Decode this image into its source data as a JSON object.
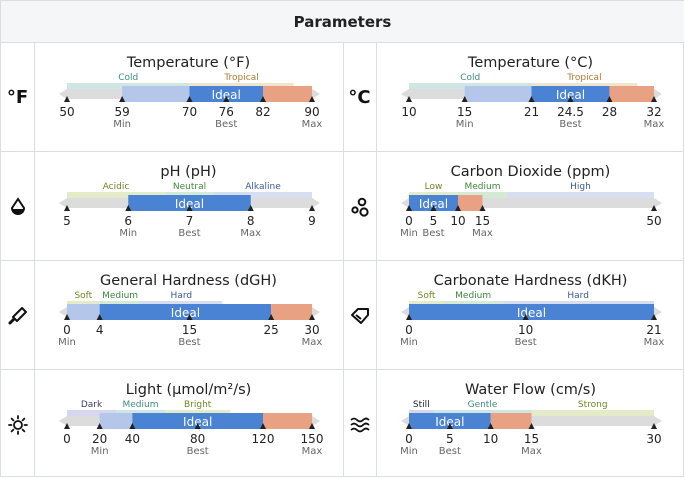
{
  "header": {
    "title": "Parameters"
  },
  "params": [
    {
      "icon": "°F",
      "icon_name": "fahrenheit-icon",
      "title": "Temperature (°F)",
      "domain": [
        50,
        90
      ],
      "zones": [
        {
          "label": "Cold",
          "from": 50,
          "to": 70,
          "color": "#cfe7e4",
          "text": "#3f8b80"
        },
        {
          "label": "Tropical",
          "from": 70,
          "to": 87,
          "color": "#f1e4cc",
          "text": "#b07a30"
        }
      ],
      "ranges": {
        "lowMin": 59,
        "idealMin": 70,
        "idealMax": 82,
        "max": 90
      },
      "ideal_label": "Ideal",
      "ticks": [
        {
          "v": 50,
          "label": "50",
          "sub": ""
        },
        {
          "v": 59,
          "label": "59",
          "sub": "Min"
        },
        {
          "v": 70,
          "label": "70",
          "sub": ""
        },
        {
          "v": 76,
          "label": "76",
          "sub": "Best"
        },
        {
          "v": 82,
          "label": "82",
          "sub": ""
        },
        {
          "v": 90,
          "label": "90",
          "sub": "Max"
        }
      ]
    },
    {
      "icon": "°C",
      "icon_name": "celsius-icon",
      "title": "Temperature (°C)",
      "domain": [
        10,
        32
      ],
      "zones": [
        {
          "label": "Cold",
          "from": 10,
          "to": 21,
          "color": "#cfe7e4",
          "text": "#3f8b80"
        },
        {
          "label": "Tropical",
          "from": 21,
          "to": 30.5,
          "color": "#f1e4cc",
          "text": "#b07a30"
        }
      ],
      "ranges": {
        "lowMin": 15,
        "idealMin": 21,
        "idealMax": 28,
        "max": 32
      },
      "ideal_label": "Ideal",
      "ticks": [
        {
          "v": 10,
          "label": "10",
          "sub": ""
        },
        {
          "v": 15,
          "label": "15",
          "sub": "Min"
        },
        {
          "v": 21,
          "label": "21",
          "sub": ""
        },
        {
          "v": 24.5,
          "label": "24.5",
          "sub": "Best"
        },
        {
          "v": 28,
          "label": "28",
          "sub": ""
        },
        {
          "v": 32,
          "label": "32",
          "sub": "Max"
        }
      ]
    },
    {
      "icon": "drop",
      "icon_name": "water-drop-icon",
      "title": "pH (pH)",
      "domain": [
        5,
        9
      ],
      "zones": [
        {
          "label": "Acidic",
          "from": 5,
          "to": 6.6,
          "color": "#e3ebc9",
          "text": "#6b8a1f"
        },
        {
          "label": "Neutral",
          "from": 6.6,
          "to": 7.4,
          "color": "#d4ead4",
          "text": "#3d8a3d"
        },
        {
          "label": "Alkaline",
          "from": 7.4,
          "to": 9,
          "color": "#d6def0",
          "text": "#3b5a99"
        }
      ],
      "ranges": {
        "lowMin": 6,
        "idealMin": 6,
        "idealMax": 8,
        "max": 8
      },
      "ideal_label": "Ideal",
      "ticks": [
        {
          "v": 5,
          "label": "5",
          "sub": ""
        },
        {
          "v": 6,
          "label": "6",
          "sub": "Min"
        },
        {
          "v": 7,
          "label": "7",
          "sub": "Best"
        },
        {
          "v": 8,
          "label": "8",
          "sub": "Max"
        },
        {
          "v": 9,
          "label": "9",
          "sub": ""
        }
      ]
    },
    {
      "icon": "bubbles",
      "icon_name": "bubbles-icon",
      "title": "Carbon Dioxide (ppm)",
      "domain": [
        0,
        50
      ],
      "zones": [
        {
          "label": "Low",
          "from": 0,
          "to": 10,
          "color": "#e3ebc9",
          "text": "#6b8a1f"
        },
        {
          "label": "Medium",
          "from": 10,
          "to": 20,
          "color": "#d4ead4",
          "text": "#3d8a3d"
        },
        {
          "label": "High",
          "from": 20,
          "to": 50,
          "color": "#d6def0",
          "text": "#3b5a99"
        }
      ],
      "ranges": {
        "lowMin": 0,
        "idealMin": 0,
        "idealMax": 10,
        "max": 15
      },
      "ideal_label": "Ideal",
      "ticks": [
        {
          "v": 0,
          "label": "0",
          "sub": "Min"
        },
        {
          "v": 5,
          "label": "5",
          "sub": "Best"
        },
        {
          "v": 10,
          "label": "10",
          "sub": ""
        },
        {
          "v": 15,
          "label": "15",
          "sub": "Max"
        },
        {
          "v": 50,
          "label": "50",
          "sub": ""
        }
      ]
    },
    {
      "icon": "pestle",
      "icon_name": "pestle-icon",
      "title": "General Hardness (dGH)",
      "domain": [
        0,
        30
      ],
      "zones": [
        {
          "label": "Soft",
          "from": 0,
          "to": 4,
          "color": "#e3ebc9",
          "text": "#6b8a1f"
        },
        {
          "label": "Medium",
          "from": 4,
          "to": 9,
          "color": "#d4ead4",
          "text": "#3d8a3d"
        },
        {
          "label": "Hard",
          "from": 9,
          "to": 19,
          "color": "#d6def0",
          "text": "#3b5a99"
        }
      ],
      "ranges": {
        "lowMin": 0,
        "idealMin": 4,
        "idealMax": 25,
        "max": 30
      },
      "ideal_label": "Ideal",
      "ticks": [
        {
          "v": 0,
          "label": "0",
          "sub": "Min"
        },
        {
          "v": 4,
          "label": "4",
          "sub": ""
        },
        {
          "v": 15,
          "label": "15",
          "sub": "Best"
        },
        {
          "v": 25,
          "label": "25",
          "sub": ""
        },
        {
          "v": 30,
          "label": "30",
          "sub": "Max"
        }
      ]
    },
    {
      "icon": "gem",
      "icon_name": "gem-icon",
      "title": "Carbonate Hardness (dKH)",
      "domain": [
        0,
        21
      ],
      "zones": [
        {
          "label": "Soft",
          "from": 0,
          "to": 3,
          "color": "#e3ebc9",
          "text": "#6b8a1f"
        },
        {
          "label": "Medium",
          "from": 3,
          "to": 8,
          "color": "#d4ead4",
          "text": "#3d8a3d"
        },
        {
          "label": "Hard",
          "from": 8,
          "to": 21,
          "color": "#d6def0",
          "text": "#3b5a99"
        }
      ],
      "ranges": {
        "lowMin": 0,
        "idealMin": 0,
        "idealMax": 21,
        "max": 21
      },
      "ideal_label": "Ideal",
      "ticks": [
        {
          "v": 0,
          "label": "0",
          "sub": "Min"
        },
        {
          "v": 10,
          "label": "10",
          "sub": "Best"
        },
        {
          "v": 21,
          "label": "21",
          "sub": "Max"
        }
      ]
    },
    {
      "icon": "sun",
      "icon_name": "sun-icon",
      "title": "Light (µmol/m²/s)",
      "domain": [
        0,
        150
      ],
      "zones": [
        {
          "label": "Dark",
          "from": 0,
          "to": 30,
          "color": "#d6d6ef",
          "text": "#3a3a80"
        },
        {
          "label": "Medium",
          "from": 30,
          "to": 60,
          "color": "#cfe7e4",
          "text": "#3f8b80"
        },
        {
          "label": "Bright",
          "from": 60,
          "to": 100,
          "color": "#e3ebc9",
          "text": "#6b8a1f"
        }
      ],
      "ranges": {
        "lowMin": 20,
        "idealMin": 40,
        "idealMax": 120,
        "max": 150
      },
      "ideal_label": "Ideal",
      "ticks": [
        {
          "v": 0,
          "label": "0",
          "sub": ""
        },
        {
          "v": 20,
          "label": "20",
          "sub": "Min"
        },
        {
          "v": 40,
          "label": "40",
          "sub": ""
        },
        {
          "v": 80,
          "label": "80",
          "sub": "Best"
        },
        {
          "v": 120,
          "label": "120",
          "sub": ""
        },
        {
          "v": 150,
          "label": "150",
          "sub": "Max"
        }
      ]
    },
    {
      "icon": "waves",
      "icon_name": "waves-icon",
      "title": "Water Flow (cm/s)",
      "domain": [
        0,
        30
      ],
      "zones": [
        {
          "label": "Still",
          "from": 0,
          "to": 3,
          "color": "#d6d6ef",
          "text": "#222222"
        },
        {
          "label": "Gentle",
          "from": 3,
          "to": 15,
          "color": "#cfe7e4",
          "text": "#3f8b80"
        },
        {
          "label": "Strong",
          "from": 15,
          "to": 30,
          "color": "#e3ebc9",
          "text": "#6b8a1f"
        }
      ],
      "ranges": {
        "lowMin": 0,
        "idealMin": 0,
        "idealMax": 10,
        "max": 15
      },
      "ideal_label": "Ideal",
      "ticks": [
        {
          "v": 0,
          "label": "0",
          "sub": "Min"
        },
        {
          "v": 5,
          "label": "5",
          "sub": "Best"
        },
        {
          "v": 10,
          "label": "10",
          "sub": ""
        },
        {
          "v": 15,
          "label": "15",
          "sub": "Max"
        },
        {
          "v": 30,
          "label": "30",
          "sub": ""
        }
      ]
    }
  ],
  "colors": {
    "low": "#b4c6ea",
    "ideal": "#4a82d4",
    "high": "#e9a184",
    "track": "#dcdcdc",
    "tick": "#222222",
    "sub": "#666666"
  }
}
